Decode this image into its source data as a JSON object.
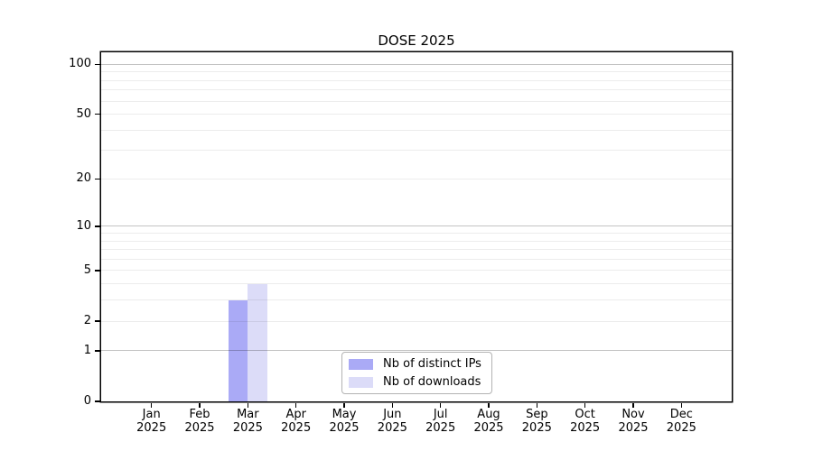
{
  "chart_data": {
    "type": "bar",
    "title": "DOSE 2025",
    "categories": [
      "Jan 2025",
      "Feb 2025",
      "Mar 2025",
      "Apr 2025",
      "May 2025",
      "Jun 2025",
      "Jul 2025",
      "Aug 2025",
      "Sep 2025",
      "Oct 2025",
      "Nov 2025",
      "Dec 2025"
    ],
    "series": [
      {
        "name": "Nb of distinct IPs",
        "color": "#aaaaf6",
        "values": [
          0,
          0,
          3,
          0,
          0,
          0,
          0,
          0,
          0,
          0,
          0,
          0
        ]
      },
      {
        "name": "Nb of downloads",
        "color": "#dcdcf8",
        "values": [
          0,
          0,
          4,
          0,
          0,
          0,
          0,
          0,
          0,
          0,
          0,
          0
        ]
      }
    ],
    "y_axis": {
      "scale": "log1p",
      "tick_labels": [
        0,
        1,
        2,
        5,
        10,
        20,
        50,
        100
      ],
      "major_gridlines": [
        1,
        10,
        100
      ],
      "minor_gridlines": [
        2,
        3,
        4,
        5,
        6,
        7,
        8,
        9,
        20,
        30,
        40,
        50,
        60,
        70,
        80,
        90
      ],
      "ylim": [
        0,
        118
      ]
    },
    "xlabel": "",
    "ylabel": "",
    "grid": true,
    "legend": {
      "position": "bottom-center",
      "entries": [
        "Nb of distinct IPs",
        "Nb of downloads"
      ]
    }
  },
  "colors": {
    "background": "#ffffff",
    "axis": "#000000",
    "major_grid": "rgba(0,0,0,0.235)",
    "minor_grid": "rgba(0,0,0,0.075)",
    "legend_border": "#b3b3b3",
    "text": "#000000"
  }
}
